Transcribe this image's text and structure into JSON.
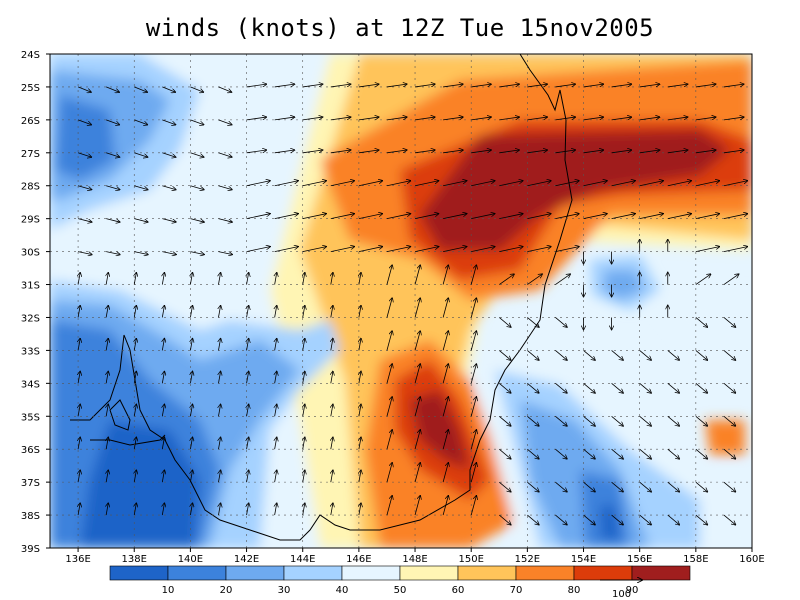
{
  "title": "winds (knots) at 12Z Tue 15nov2005",
  "map": {
    "lat_labels": [
      "24S",
      "25S",
      "26S",
      "27S",
      "28S",
      "29S",
      "30S",
      "31S",
      "32S",
      "33S",
      "34S",
      "35S",
      "36S",
      "37S",
      "38S",
      "39S"
    ],
    "lon_labels": [
      "136E",
      "138E",
      "140E",
      "142E",
      "144E",
      "146E",
      "148E",
      "150E",
      "152E",
      "154E",
      "156E",
      "158E",
      "160E"
    ],
    "lat_range": [
      -39,
      -24
    ],
    "lon_range": [
      135,
      160
    ],
    "grid": "dashed",
    "variable": "wind speed",
    "units": "knots"
  },
  "colorbar": {
    "labels": [
      "10",
      "20",
      "30",
      "40",
      "50",
      "60",
      "70",
      "80",
      "90"
    ],
    "colors": [
      "#1e64c8",
      "#3c82dc",
      "#6eaaf0",
      "#a5d2ff",
      "#e6f5ff",
      "#fff5b4",
      "#ffc45a",
      "#fa8228",
      "#dc3c0a",
      "#a01e1e"
    ]
  },
  "vector_reference": {
    "label": "100"
  },
  "features": {
    "cyclone_center": "31S 156E",
    "jet_core": "28S-30S 148E-156E"
  }
}
